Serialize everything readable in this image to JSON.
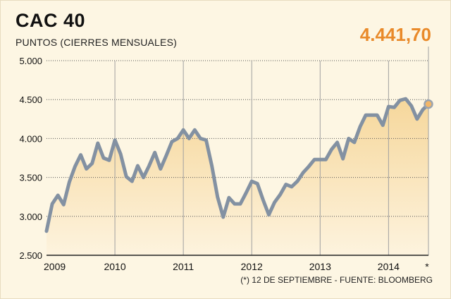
{
  "header": {
    "title": "CAC 40",
    "subtitle": "PUNTOS (CIERRES MENSUALES)",
    "last_value_label": "4.441,70"
  },
  "footnote": "(*) 12 DE SEPTIEMBRE - FUENTE: BLOOMBERG",
  "colors": {
    "line": "#8391a2",
    "area_top": "#f6d79b",
    "area_bottom": "#fdf3de",
    "highlight": "#e98a2a",
    "grid": "#a0a0a0"
  },
  "chart_data": {
    "type": "line",
    "title": "CAC 40",
    "subtitle": "PUNTOS (CIERRES MENSUALES)",
    "xlabel": "",
    "ylabel": "",
    "ylim": [
      2500,
      5000
    ],
    "yticks": [
      5000,
      4500,
      4000,
      3500,
      3000,
      2500
    ],
    "ytick_labels": [
      "5.000",
      "4.500",
      "4.000",
      "3.500",
      "3.000",
      "2.500"
    ],
    "xtick_labels": [
      "2009",
      "2010",
      "2011",
      "2012",
      "2013",
      "2014",
      "*"
    ],
    "grid": "vertical lines at year starts",
    "fill": "area under line",
    "series": [
      {
        "values": [
          2810,
          3160,
          3270,
          3150,
          3440,
          3640,
          3790,
          3610,
          3680,
          3940,
          3750,
          3720,
          3980,
          3800,
          3510,
          3450,
          3650,
          3500,
          3650,
          3820,
          3610,
          3780,
          3960,
          4000,
          4110,
          4000,
          4110,
          4000,
          3980,
          3650,
          3250,
          2990,
          3240,
          3160,
          3160,
          3300,
          3450,
          3420,
          3210,
          3020,
          3180,
          3280,
          3410,
          3380,
          3450,
          3560,
          3640,
          3730,
          3730,
          3730,
          3860,
          3950,
          3740,
          4000,
          3950,
          4150,
          4300,
          4300,
          4300,
          4170,
          4410,
          4400,
          4490,
          4510,
          4420,
          4250,
          4370,
          4441.7
        ]
      }
    ],
    "last_point": {
      "label": "4.441,70",
      "value": 4441.7,
      "marker": "*"
    }
  }
}
